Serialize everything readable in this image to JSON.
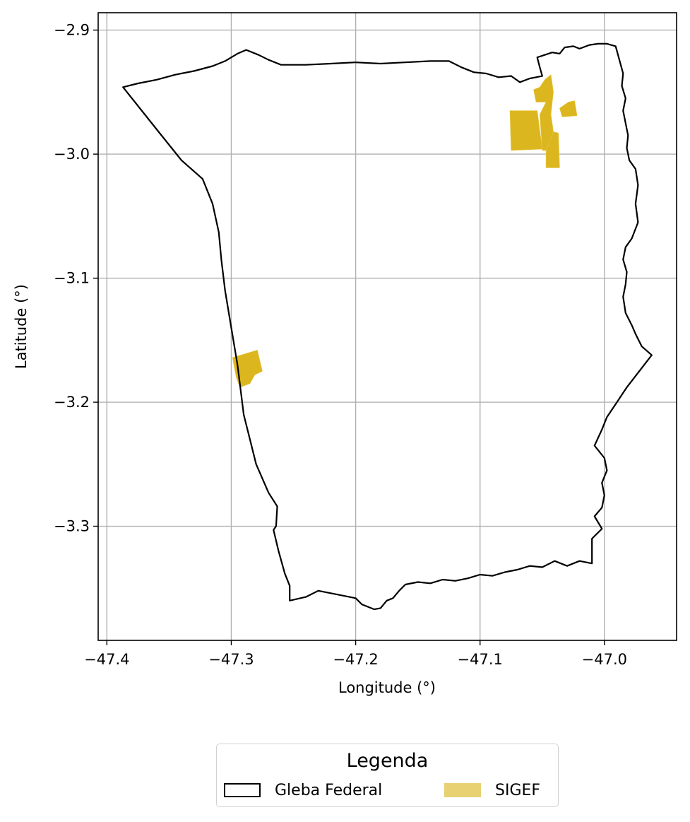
{
  "map": {
    "xlabel": "Longitude (°)",
    "ylabel": "Latitude (°)",
    "xlim": [
      -47.407,
      -46.942
    ],
    "ylim": [
      -3.392,
      -2.886
    ],
    "xticks": [
      -47.4,
      -47.3,
      -47.2,
      -47.1,
      -47.0
    ],
    "yticks": [
      -2.9,
      -3.0,
      -3.1,
      -3.2,
      -3.3
    ],
    "xtick_labels": [
      "−47.4",
      "−47.3",
      "−47.2",
      "−47.1",
      "−47.0"
    ],
    "ytick_labels": [
      "−2.9",
      "−3.0",
      "−3.1",
      "−3.2",
      "−3.3"
    ],
    "grid": true,
    "colors": {
      "boundary": "#000000",
      "sigef": "#dcb61e",
      "grid": "#b0b0b0"
    },
    "gleba_federal": [
      [
        -47.387,
        -2.946
      ],
      [
        -47.375,
        -2.943
      ],
      [
        -47.36,
        -2.94
      ],
      [
        -47.345,
        -2.936
      ],
      [
        -47.33,
        -2.933
      ],
      [
        -47.315,
        -2.929
      ],
      [
        -47.305,
        -2.925
      ],
      [
        -47.295,
        -2.919
      ],
      [
        -47.288,
        -2.916
      ],
      [
        -47.278,
        -2.92
      ],
      [
        -47.27,
        -2.924
      ],
      [
        -47.26,
        -2.928
      ],
      [
        -47.24,
        -2.928
      ],
      [
        -47.22,
        -2.927
      ],
      [
        -47.2,
        -2.926
      ],
      [
        -47.18,
        -2.927
      ],
      [
        -47.16,
        -2.926
      ],
      [
        -47.14,
        -2.925
      ],
      [
        -47.125,
        -2.925
      ],
      [
        -47.115,
        -2.93
      ],
      [
        -47.105,
        -2.934
      ],
      [
        -47.095,
        -2.935
      ],
      [
        -47.085,
        -2.938
      ],
      [
        -47.075,
        -2.937
      ],
      [
        -47.068,
        -2.942
      ],
      [
        -47.06,
        -2.939
      ],
      [
        -47.055,
        -2.938
      ],
      [
        -47.05,
        -2.937
      ],
      [
        -47.052,
        -2.93
      ],
      [
        -47.054,
        -2.922
      ],
      [
        -47.048,
        -2.92
      ],
      [
        -47.042,
        -2.918
      ],
      [
        -47.036,
        -2.919
      ],
      [
        -47.032,
        -2.914
      ],
      [
        -47.025,
        -2.913
      ],
      [
        -47.02,
        -2.915
      ],
      [
        -47.012,
        -2.912
      ],
      [
        -47.005,
        -2.911
      ],
      [
        -46.998,
        -2.911
      ],
      [
        -46.991,
        -2.913
      ],
      [
        -46.988,
        -2.924
      ],
      [
        -46.985,
        -2.935
      ],
      [
        -46.986,
        -2.945
      ],
      [
        -46.983,
        -2.955
      ],
      [
        -46.985,
        -2.965
      ],
      [
        -46.983,
        -2.975
      ],
      [
        -46.981,
        -2.985
      ],
      [
        -46.982,
        -2.995
      ],
      [
        -46.98,
        -3.005
      ],
      [
        -46.975,
        -3.012
      ],
      [
        -46.973,
        -3.025
      ],
      [
        -46.975,
        -3.04
      ],
      [
        -46.973,
        -3.055
      ],
      [
        -46.978,
        -3.068
      ],
      [
        -46.983,
        -3.075
      ],
      [
        -46.985,
        -3.085
      ],
      [
        -46.982,
        -3.095
      ],
      [
        -46.983,
        -3.105
      ],
      [
        -46.985,
        -3.115
      ],
      [
        -46.983,
        -3.128
      ],
      [
        -46.978,
        -3.138
      ],
      [
        -46.975,
        -3.145
      ],
      [
        -46.97,
        -3.155
      ],
      [
        -46.962,
        -3.162
      ],
      [
        -46.972,
        -3.175
      ],
      [
        -46.982,
        -3.188
      ],
      [
        -46.99,
        -3.2
      ],
      [
        -46.998,
        -3.212
      ],
      [
        -47.002,
        -3.222
      ],
      [
        -47.008,
        -3.235
      ],
      [
        -47.0,
        -3.245
      ],
      [
        -46.998,
        -3.255
      ],
      [
        -47.002,
        -3.265
      ],
      [
        -47.0,
        -3.275
      ],
      [
        -47.002,
        -3.285
      ],
      [
        -47.008,
        -3.292
      ],
      [
        -47.002,
        -3.302
      ],
      [
        -47.01,
        -3.31
      ],
      [
        -47.01,
        -3.32
      ],
      [
        -47.01,
        -3.33
      ],
      [
        -47.02,
        -3.328
      ],
      [
        -47.03,
        -3.332
      ],
      [
        -47.04,
        -3.328
      ],
      [
        -47.05,
        -3.333
      ],
      [
        -47.06,
        -3.332
      ],
      [
        -47.07,
        -3.335
      ],
      [
        -47.08,
        -3.337
      ],
      [
        -47.09,
        -3.34
      ],
      [
        -47.1,
        -3.339
      ],
      [
        -47.11,
        -3.342
      ],
      [
        -47.12,
        -3.344
      ],
      [
        -47.13,
        -3.343
      ],
      [
        -47.14,
        -3.346
      ],
      [
        -47.15,
        -3.345
      ],
      [
        -47.16,
        -3.347
      ],
      [
        -47.165,
        -3.352
      ],
      [
        -47.17,
        -3.358
      ],
      [
        -47.175,
        -3.36
      ],
      [
        -47.18,
        -3.366
      ],
      [
        -47.185,
        -3.367
      ],
      [
        -47.195,
        -3.363
      ],
      [
        -47.2,
        -3.358
      ],
      [
        -47.21,
        -3.356
      ],
      [
        -47.22,
        -3.354
      ],
      [
        -47.23,
        -3.352
      ],
      [
        -47.24,
        -3.357
      ],
      [
        -47.253,
        -3.36
      ],
      [
        -47.253,
        -3.348
      ],
      [
        -47.257,
        -3.338
      ],
      [
        -47.262,
        -3.32
      ],
      [
        -47.266,
        -3.303
      ],
      [
        -47.264,
        -3.3
      ],
      [
        -47.263,
        -3.284
      ],
      [
        -47.27,
        -3.273
      ],
      [
        -47.28,
        -3.25
      ],
      [
        -47.29,
        -3.21
      ],
      [
        -47.295,
        -3.17
      ],
      [
        -47.3,
        -3.14
      ],
      [
        -47.305,
        -3.11
      ],
      [
        -47.308,
        -3.085
      ],
      [
        -47.31,
        -3.063
      ],
      [
        -47.315,
        -3.04
      ],
      [
        -47.323,
        -3.02
      ],
      [
        -47.34,
        -3.005
      ],
      [
        -47.36,
        -2.98
      ],
      [
        -47.387,
        -2.946
      ]
    ],
    "sigef": [
      [
        [
          -47.076,
          -2.965
        ],
        [
          -47.054,
          -2.965
        ],
        [
          -47.05,
          -2.996
        ],
        [
          -47.075,
          -2.997
        ]
      ],
      [
        [
          -47.05,
          -2.997
        ],
        [
          -47.052,
          -2.968
        ],
        [
          -47.047,
          -2.958
        ],
        [
          -47.055,
          -2.958
        ],
        [
          -47.057,
          -2.948
        ],
        [
          -47.052,
          -2.946
        ],
        [
          -47.048,
          -2.94
        ],
        [
          -47.043,
          -2.936
        ],
        [
          -47.041,
          -2.95
        ],
        [
          -47.043,
          -2.968
        ],
        [
          -47.041,
          -2.982
        ],
        [
          -47.046,
          -2.997
        ]
      ],
      [
        [
          -47.047,
          -2.997
        ],
        [
          -47.041,
          -2.982
        ],
        [
          -47.037,
          -2.983
        ],
        [
          -47.036,
          -3.011
        ],
        [
          -47.047,
          -3.011
        ]
      ],
      [
        [
          -47.036,
          -2.963
        ],
        [
          -47.029,
          -2.958
        ],
        [
          -47.024,
          -2.957
        ],
        [
          -47.022,
          -2.969
        ],
        [
          -47.034,
          -2.97
        ]
      ],
      [
        [
          -47.299,
          -3.164
        ],
        [
          -47.279,
          -3.158
        ],
        [
          -47.275,
          -3.175
        ],
        [
          -47.281,
          -3.178
        ],
        [
          -47.285,
          -3.185
        ],
        [
          -47.293,
          -3.188
        ],
        [
          -47.296,
          -3.18
        ]
      ]
    ]
  },
  "legend": {
    "title": "Legenda",
    "items": [
      {
        "label": "Gleba Federal",
        "style": "outline",
        "color": "#000000"
      },
      {
        "label": "SIGEF",
        "style": "fill",
        "color": "#e8d173"
      }
    ]
  }
}
